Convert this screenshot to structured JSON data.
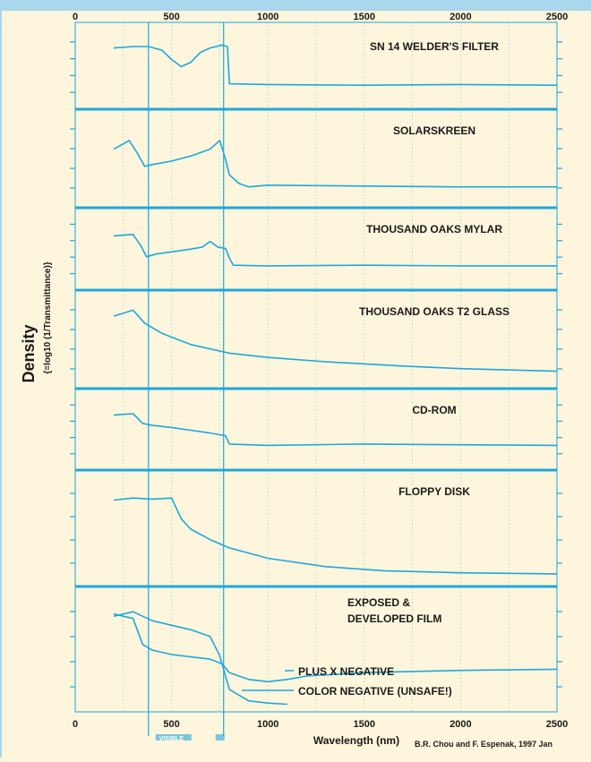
{
  "chart_data": {
    "type": "line",
    "title": "",
    "xlabel": "Wavelength (nm)",
    "ylabel": "Density",
    "ylabel_sub": "{=log10 (1/Transmittance)}",
    "credit": "B.R. Chou and F. Espenak, 1997 Jan",
    "visible_label": "VISIBLE",
    "visible_range": [
      380,
      770
    ],
    "xlim": [
      0,
      2500
    ],
    "x_ticks": [
      0,
      500,
      1000,
      1500,
      2000,
      2500
    ],
    "grid": true,
    "colors": {
      "background": "#fdf6dc",
      "top_bar": "#a9d7ec",
      "line": "#1ea7dd",
      "text": "#1a1a1a"
    },
    "panels": [
      {
        "name": "SN 14 WELDER'S FILTER",
        "series": [
          {
            "name": "",
            "x": [
              200,
              300,
              380,
              450,
              500,
              550,
              600,
              650,
              700,
              760,
              790,
              800,
              1000,
              1500,
              2000,
              2500
            ],
            "y": [
              0.78,
              0.8,
              0.8,
              0.75,
              0.62,
              0.52,
              0.58,
              0.72,
              0.78,
              0.82,
              0.8,
              0.28,
              0.27,
              0.26,
              0.27,
              0.26
            ]
          }
        ]
      },
      {
        "name": "SOLARSKREEN",
        "series": [
          {
            "name": "",
            "x": [
              200,
              280,
              320,
              360,
              400,
              500,
              600,
              700,
              750,
              780,
              800,
              850,
              900,
              1000,
              1500,
              2000,
              2500
            ],
            "y": [
              0.62,
              0.72,
              0.58,
              0.42,
              0.44,
              0.48,
              0.54,
              0.62,
              0.72,
              0.5,
              0.32,
              0.22,
              0.18,
              0.2,
              0.19,
              0.18,
              0.18
            ]
          }
        ]
      },
      {
        "name": "THOUSAND OAKS MYLAR",
        "series": [
          {
            "name": "",
            "x": [
              200,
              300,
              340,
              370,
              420,
              500,
              600,
              660,
              700,
              740,
              780,
              800,
              820,
              1000,
              1500,
              2000,
              2500
            ],
            "y": [
              0.7,
              0.72,
              0.56,
              0.4,
              0.44,
              0.47,
              0.51,
              0.54,
              0.62,
              0.54,
              0.52,
              0.38,
              0.28,
              0.27,
              0.28,
              0.27,
              0.27
            ]
          }
        ]
      },
      {
        "name": "THOUSAND OAKS T2 GLASS",
        "series": [
          {
            "name": "",
            "x": [
              200,
              300,
              360,
              450,
              600,
              800,
              1000,
              1300,
              1700,
              2000,
              2500
            ],
            "y": [
              0.78,
              0.85,
              0.7,
              0.58,
              0.45,
              0.35,
              0.3,
              0.25,
              0.2,
              0.17,
              0.14
            ]
          }
        ]
      },
      {
        "name": "CD-ROM",
        "series": [
          {
            "name": "",
            "x": [
              200,
              300,
              350,
              400,
              500,
              600,
              700,
              780,
              800,
              1000,
              1500,
              2000,
              2500
            ],
            "y": [
              0.72,
              0.74,
              0.6,
              0.57,
              0.54,
              0.5,
              0.46,
              0.42,
              0.3,
              0.28,
              0.3,
              0.29,
              0.28
            ]
          }
        ]
      },
      {
        "name": "FLOPPY DISK",
        "series": [
          {
            "name": "",
            "x": [
              200,
              300,
              400,
              500,
              550,
              600,
              700,
              800,
              1000,
              1300,
              1600,
              2000,
              2500
            ],
            "y": [
              0.78,
              0.8,
              0.79,
              0.8,
              0.6,
              0.5,
              0.4,
              0.32,
              0.22,
              0.14,
              0.1,
              0.08,
              0.07
            ]
          }
        ]
      },
      {
        "name": "EXPOSED & DEVELOPED FILM",
        "series": [
          {
            "name": "PLUS X NEGATIVE",
            "x": [
              200,
              300,
              350,
              400,
              500,
              600,
              700,
              760,
              800,
              900,
              1000,
              1100,
              1200,
              1500,
              2000,
              2500
            ],
            "y": [
              0.82,
              0.78,
              0.55,
              0.5,
              0.46,
              0.44,
              0.42,
              0.38,
              0.3,
              0.24,
              0.22,
              0.24,
              0.27,
              0.3,
              0.32,
              0.33
            ]
          },
          {
            "name": "COLOR NEGATIVE (UNSAFE!)",
            "x": [
              200,
              300,
              350,
              400,
              500,
              600,
              700,
              750,
              800,
              900,
              1000,
              1100
            ],
            "y": [
              0.8,
              0.84,
              0.8,
              0.76,
              0.72,
              0.68,
              0.62,
              0.45,
              0.15,
              0.05,
              0.03,
              0.02
            ]
          }
        ]
      }
    ]
  }
}
